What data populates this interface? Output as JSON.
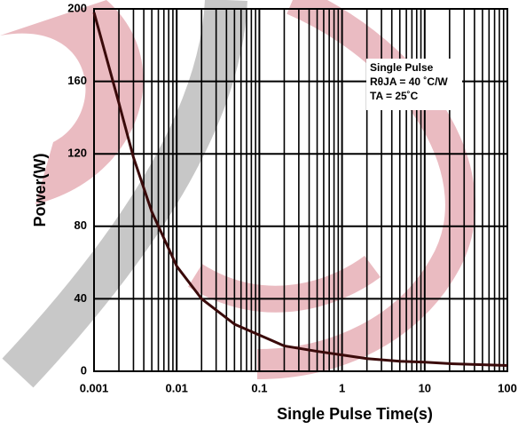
{
  "chart_data": {
    "type": "line",
    "x_label": "Single Pulse Time(s)",
    "y_label": "Power(W)",
    "annotations": [
      "Single Pulse",
      "RθJA = 40 ˚C/W",
      "TA = 25˚C"
    ],
    "x": [
      0.001,
      0.002,
      0.003,
      0.005,
      0.01,
      0.02,
      0.05,
      0.1,
      0.2,
      0.5,
      1,
      2,
      5,
      10,
      20,
      50,
      100
    ],
    "series": [
      {
        "color": "#3a0a0a",
        "values": [
          198,
          148,
          118,
          88,
          58,
          40,
          26,
          20,
          14,
          11,
          9,
          7,
          5.5,
          5,
          4.2,
          3.6,
          3.2
        ]
      }
    ],
    "xlim": [
      0.001,
      100
    ],
    "xticks": [
      0.001,
      0.01,
      0.1,
      1,
      10,
      100
    ],
    "ylim": [
      0,
      200
    ],
    "yticks": [
      0,
      40,
      80,
      120,
      160,
      200
    ],
    "x_log": true,
    "grid": true,
    "minor_grid": true
  }
}
